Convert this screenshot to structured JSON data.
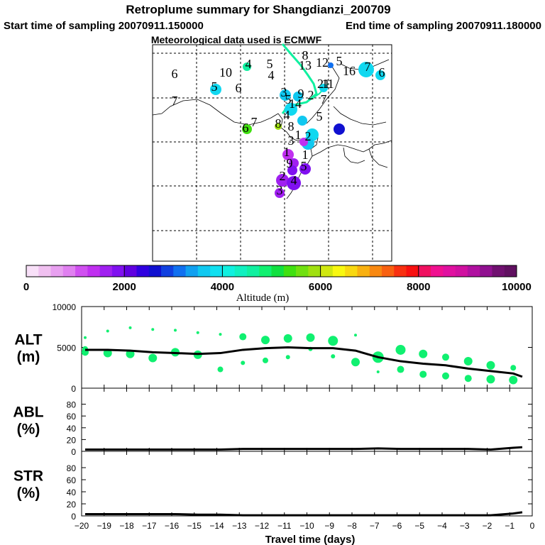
{
  "header": {
    "title": "Retroplume summary for Shangdianzi_200709",
    "start_label": "Start time of sampling 20070911.150000",
    "end_label": "End time of sampling 20070911.180000",
    "met_label": "Meteorological data used is ECMWF"
  },
  "colorbar": {
    "label": "Altitude (m)",
    "ticks": [
      "0",
      "2000",
      "4000",
      "6000",
      "8000",
      "10000"
    ],
    "colors": [
      "#f8e0f8",
      "#f0c0f0",
      "#e8a0f0",
      "#e080f0",
      "#d050f0",
      "#c030f0",
      "#a020f0",
      "#8010f0",
      "#6000e0",
      "#3000e0",
      "#1010d0",
      "#1040e0",
      "#1070f0",
      "#10a0f0",
      "#10c8f0",
      "#10e0f0",
      "#10f0e0",
      "#10f0c0",
      "#10f0a0",
      "#10f070",
      "#10e040",
      "#40e010",
      "#70e010",
      "#a0e010",
      "#d0e810",
      "#f8f810",
      "#f8d810",
      "#f8b010",
      "#f88810",
      "#f86010",
      "#f83010",
      "#f81010",
      "#f01060",
      "#f01090",
      "#e010a0",
      "#d010a0",
      "#b010a0",
      "#901090",
      "#701070",
      "#601060"
    ]
  },
  "map": {
    "labels": [
      {
        "t": "6"
      },
      {
        "t": "7"
      },
      {
        "t": "10"
      },
      {
        "t": "4"
      },
      {
        "t": "5"
      },
      {
        "t": "4"
      },
      {
        "t": "6"
      },
      {
        "t": "5"
      },
      {
        "t": "8"
      },
      {
        "t": "13"
      },
      {
        "t": "12"
      },
      {
        "t": "5"
      },
      {
        "t": "16"
      },
      {
        "t": "7"
      },
      {
        "t": "6"
      },
      {
        "t": "11"
      },
      {
        "t": "21"
      },
      {
        "t": "3"
      },
      {
        "t": "9"
      },
      {
        "t": "7"
      },
      {
        "t": "2"
      },
      {
        "t": "5"
      },
      {
        "t": "14"
      },
      {
        "t": "4"
      },
      {
        "t": "5"
      },
      {
        "t": "6"
      },
      {
        "t": "7"
      },
      {
        "t": "8"
      },
      {
        "t": "8"
      },
      {
        "t": "2"
      },
      {
        "t": "3"
      },
      {
        "t": "1"
      },
      {
        "t": "1"
      },
      {
        "t": "9"
      },
      {
        "t": "5"
      },
      {
        "t": "2"
      },
      {
        "t": "4"
      },
      {
        "t": "3"
      },
      {
        "t": "1"
      }
    ]
  },
  "chart_data": [
    {
      "type": "line",
      "name": "ALT",
      "ylabel": "ALT\n(m)",
      "ylabel_lines": [
        "ALT",
        "(m)"
      ],
      "ylim": [
        0,
        10000
      ],
      "yticks": [
        "10000",
        "5000",
        "0"
      ],
      "x": [
        -20,
        -19,
        -18,
        -17,
        -16,
        -15,
        -14,
        -13,
        -12,
        -11,
        -10,
        -9,
        -8,
        -7,
        -6,
        -5,
        -4,
        -3,
        -2,
        -1,
        -0.6
      ],
      "y": [
        4700,
        4700,
        4600,
        4400,
        4300,
        4200,
        4300,
        4700,
        4900,
        5000,
        4900,
        4900,
        4600,
        3800,
        3300,
        3000,
        2800,
        2400,
        2100,
        1800,
        1400
      ],
      "scatter_x": [
        -20,
        -20,
        -20,
        -19,
        -19,
        -18,
        -18,
        -17,
        -17,
        -16,
        -16,
        -15,
        -15,
        -14,
        -14,
        -13,
        -13,
        -12,
        -12,
        -11,
        -11,
        -10,
        -10,
        -9,
        -9,
        -8,
        -8,
        -7,
        -7,
        -6,
        -6,
        -5,
        -5,
        -4,
        -4,
        -3,
        -3,
        -2,
        -2,
        -1,
        -1
      ],
      "scatter_y": [
        6200,
        4800,
        4400,
        7000,
        4300,
        7400,
        4200,
        7200,
        3700,
        7100,
        4400,
        6800,
        4100,
        2300,
        6600,
        6300,
        3100,
        5900,
        3400,
        6100,
        3800,
        6200,
        4800,
        5800,
        3900,
        6500,
        3200,
        3800,
        2000,
        4700,
        2300,
        4200,
        1700,
        3800,
        1500,
        3300,
        1200,
        2800,
        1100,
        2500,
        1000
      ],
      "scatter_r": [
        2,
        4,
        5,
        2,
        6,
        2,
        6,
        2,
        6,
        2,
        6,
        2,
        6,
        4,
        2,
        5,
        3,
        6,
        4,
        6,
        3,
        6,
        3,
        7,
        3,
        2,
        6,
        8,
        2,
        7,
        5,
        6,
        5,
        5,
        5,
        6,
        5,
        6,
        6,
        4,
        6
      ]
    },
    {
      "type": "line",
      "name": "ABL",
      "ylabel_lines": [
        "ABL",
        "(%)"
      ],
      "ylim": [
        0,
        100
      ],
      "yticks": [
        "80",
        "60",
        "40",
        "20",
        "0"
      ],
      "x": [
        -20,
        -19,
        -18,
        -17,
        -16,
        -15,
        -14,
        -13,
        -12,
        -11,
        -10,
        -9,
        -8,
        -7,
        -6,
        -5,
        -4,
        -3,
        -2,
        -1,
        -0.6
      ],
      "y": [
        3,
        3,
        3,
        3,
        3,
        3,
        3,
        4,
        4,
        4,
        4,
        4,
        4,
        5,
        4,
        4,
        4,
        4,
        3,
        6,
        7
      ]
    },
    {
      "type": "line",
      "name": "STR",
      "ylabel_lines": [
        "STR",
        "(%)"
      ],
      "ylim": [
        0,
        100
      ],
      "yticks": [
        "80",
        "60",
        "40",
        "20",
        "0"
      ],
      "x": [
        -20,
        -19,
        -18,
        -17,
        -16,
        -15,
        -14,
        -13,
        -12,
        -11,
        -10,
        -9,
        -8,
        -7,
        -6,
        -5,
        -4,
        -3,
        -2,
        -1,
        -0.6
      ],
      "y": [
        3,
        3,
        3,
        3,
        3,
        2,
        2,
        1,
        1,
        1,
        1,
        1,
        1,
        1,
        1,
        1,
        1,
        1,
        1,
        4,
        6
      ]
    }
  ],
  "xaxis": {
    "label": "Travel time (days)",
    "ticks": [
      "−20",
      "−19",
      "−18",
      "−17",
      "−16",
      "−15",
      "−14",
      "−13",
      "−12",
      "−11",
      "−10",
      "−9",
      "−8",
      "−7",
      "−6",
      "−5",
      "−4",
      "−3",
      "−2",
      "−1",
      "0"
    ]
  },
  "colors": {
    "plume": "#10f070",
    "line": "#000000"
  }
}
